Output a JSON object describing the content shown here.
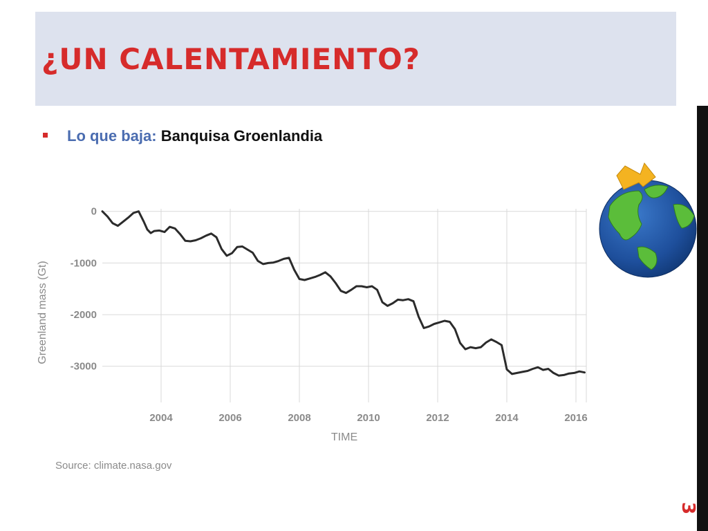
{
  "slide": {
    "title": "¿UN CALENTAMIENTO?",
    "bullet_lead": "Lo que baja:",
    "bullet_rest": "Banquisa Groenlandia",
    "page_number": "3"
  },
  "colors": {
    "title": "#d62b2b",
    "band": "#dde2ee",
    "bullet_lead": "#4a6cb0",
    "line": "#2b2b2b",
    "grid": "#d9d9d9"
  },
  "chart_data": {
    "type": "line",
    "title": "",
    "xlabel": "TIME",
    "ylabel": "Greenland mass (Gt)",
    "source": "Source: climate.nasa.gov",
    "xlim": [
      2002.3,
      2016.3
    ],
    "ylim": [
      -3700,
      50
    ],
    "x_ticks": [
      2004,
      2006,
      2008,
      2010,
      2012,
      2014,
      2016
    ],
    "y_ticks": [
      0,
      -1000,
      -2000,
      -3000
    ],
    "x_tick_labels": [
      "2004",
      "2006",
      "2008",
      "2010",
      "2012",
      "2014",
      "2016"
    ],
    "y_tick_labels": [
      "0",
      "-1000",
      "-2000",
      "-3000"
    ],
    "grid": true,
    "series": [
      {
        "x": [
          2002.3,
          2002.45,
          2002.6,
          2002.75,
          2002.9,
          2003.05,
          2003.2,
          2003.35,
          2003.5,
          2003.6,
          2003.7,
          2003.8,
          2003.95,
          2004.1,
          2004.25,
          2004.4,
          2004.55,
          2004.7,
          2004.85,
          2005.0,
          2005.15,
          2005.3,
          2005.45,
          2005.6,
          2005.75,
          2005.9,
          2006.05,
          2006.2,
          2006.35,
          2006.5,
          2006.65,
          2006.8,
          2006.95,
          2007.1,
          2007.25,
          2007.4,
          2007.55,
          2007.7,
          2007.85,
          2008.0,
          2008.15,
          2008.3,
          2008.45,
          2008.6,
          2008.75,
          2008.9,
          2009.05,
          2009.2,
          2009.35,
          2009.5,
          2009.65,
          2009.8,
          2009.95,
          2010.1,
          2010.25,
          2010.4,
          2010.55,
          2010.7,
          2010.85,
          2011.0,
          2011.15,
          2011.3,
          2011.45,
          2011.6,
          2011.75,
          2011.9,
          2012.05,
          2012.2,
          2012.35,
          2012.5,
          2012.65,
          2012.8,
          2012.95,
          2013.1,
          2013.25,
          2013.4,
          2013.55,
          2013.7,
          2013.85,
          2014.0,
          2014.15,
          2014.3,
          2014.45,
          2014.6,
          2014.75,
          2014.9,
          2015.05,
          2015.2,
          2015.35,
          2015.5,
          2015.65,
          2015.8,
          2015.95,
          2016.1,
          2016.25
        ],
        "values": [
          0,
          -100,
          -230,
          -280,
          -200,
          -120,
          -30,
          0,
          -200,
          -350,
          -420,
          -380,
          -370,
          -400,
          -300,
          -330,
          -440,
          -570,
          -580,
          -560,
          -520,
          -470,
          -430,
          -500,
          -730,
          -860,
          -810,
          -690,
          -680,
          -740,
          -800,
          -960,
          -1020,
          -1000,
          -990,
          -960,
          -920,
          -900,
          -1130,
          -1310,
          -1330,
          -1300,
          -1270,
          -1230,
          -1180,
          -1260,
          -1390,
          -1540,
          -1580,
          -1520,
          -1450,
          -1450,
          -1470,
          -1450,
          -1520,
          -1760,
          -1830,
          -1780,
          -1710,
          -1720,
          -1700,
          -1740,
          -2040,
          -2260,
          -2230,
          -2180,
          -2150,
          -2120,
          -2140,
          -2280,
          -2550,
          -2670,
          -2630,
          -2650,
          -2630,
          -2540,
          -2480,
          -2530,
          -2590,
          -3060,
          -3150,
          -3130,
          -3110,
          -3090,
          -3050,
          -3020,
          -3070,
          -3050,
          -3130,
          -3180,
          -3170,
          -3140,
          -3130,
          -3100,
          -3120
        ]
      }
    ]
  }
}
